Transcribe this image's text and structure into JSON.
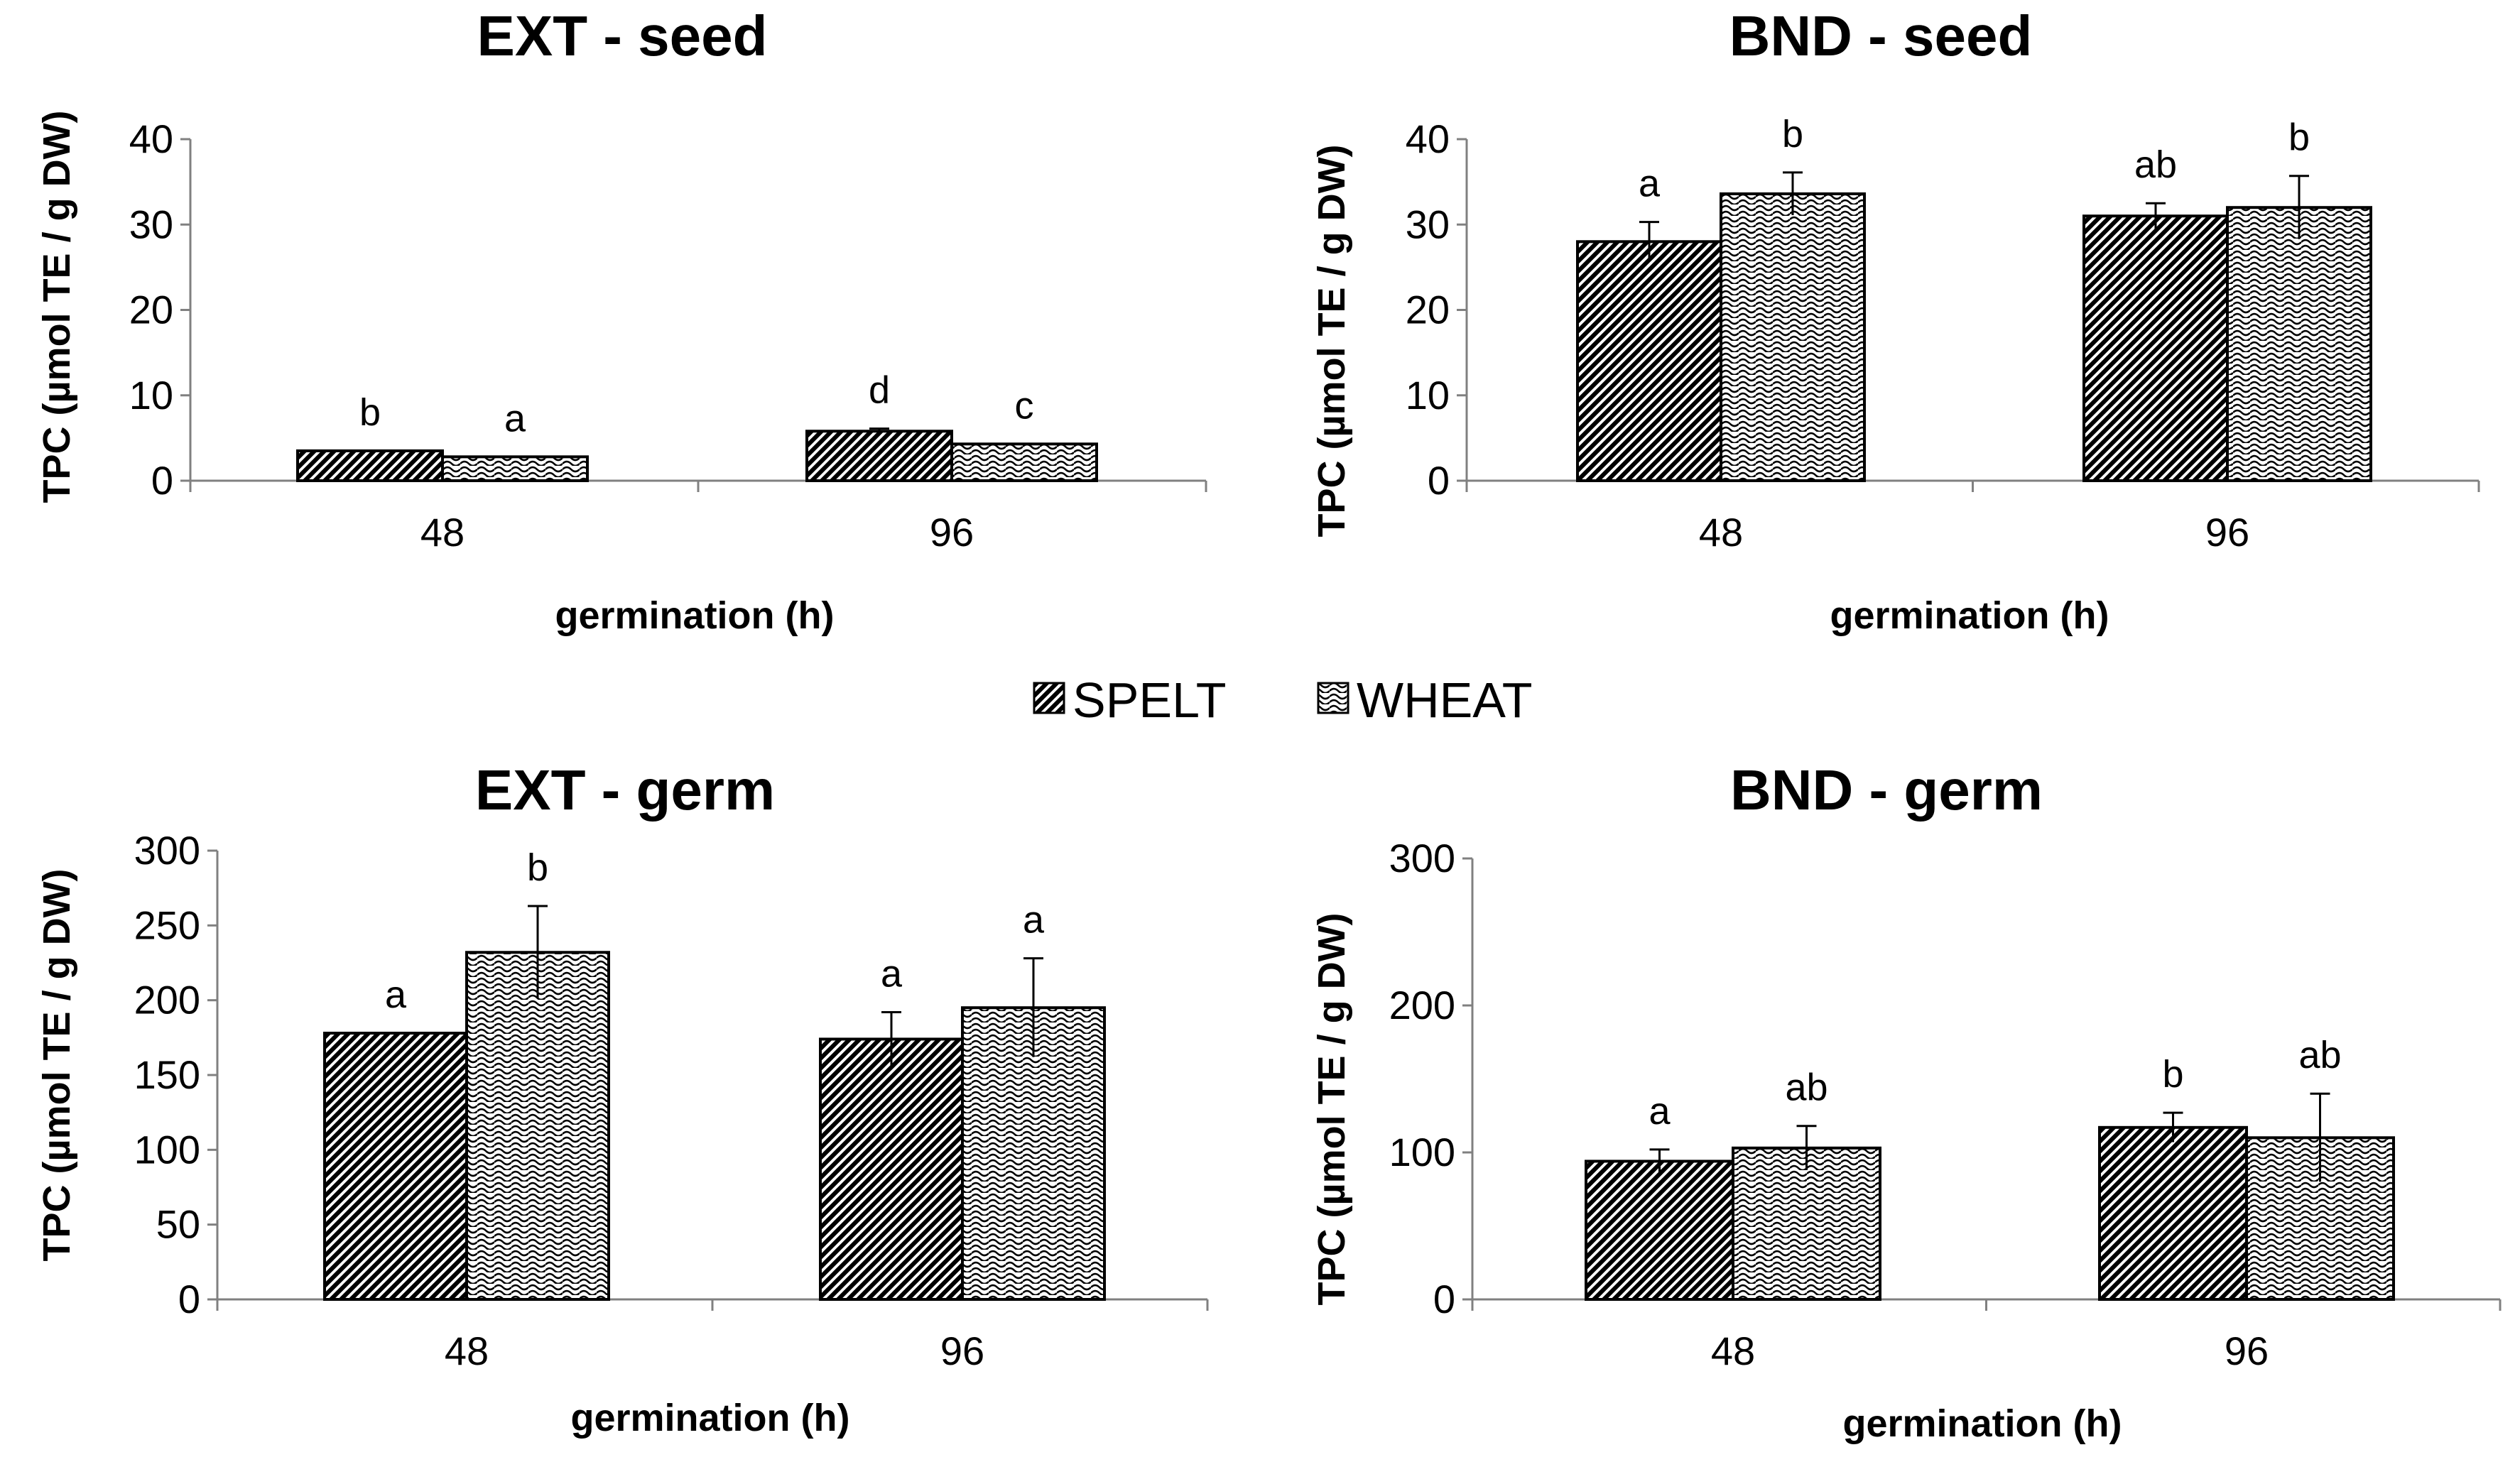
{
  "legend": [
    {
      "name": "SPELT",
      "pattern": "diagonal-hatch"
    },
    {
      "name": "WHEAT",
      "pattern": "wave"
    }
  ],
  "colors": {
    "bar_stroke": "#000000",
    "axis": "#808080",
    "text": "#000000",
    "background": "#ffffff"
  },
  "chart_data": [
    {
      "type": "bar",
      "title": "EXT - seed",
      "xlabel": "germination (h)",
      "ylabel": "TPC (µmol TE / g DW)",
      "categories": [
        "48",
        "96"
      ],
      "ylim": [
        0,
        40
      ],
      "yticks": [
        0,
        10,
        20,
        30,
        40
      ],
      "series": [
        {
          "name": "SPELT",
          "values": [
            3.5,
            5.8
          ],
          "errors": [
            0,
            0.3
          ],
          "letters": [
            "b",
            "d"
          ]
        },
        {
          "name": "WHEAT",
          "values": [
            2.8,
            4.3
          ],
          "errors": [
            0,
            0
          ],
          "letters": [
            "a",
            "c"
          ]
        }
      ]
    },
    {
      "type": "bar",
      "title": "BND - seed",
      "xlabel": "germination (h)",
      "ylabel": "TPC (µmol TE / g DW)",
      "categories": [
        "48",
        "96"
      ],
      "ylim": [
        0,
        40
      ],
      "yticks": [
        0,
        10,
        20,
        30,
        40
      ],
      "series": [
        {
          "name": "SPELT",
          "values": [
            28,
            31
          ],
          "errors": [
            2.3,
            1.5
          ],
          "letters": [
            "a",
            "ab"
          ]
        },
        {
          "name": "WHEAT",
          "values": [
            33.6,
            32
          ],
          "errors": [
            2.5,
            3.7
          ],
          "letters": [
            "b",
            "b"
          ]
        }
      ]
    },
    {
      "type": "bar",
      "title": "EXT - germ",
      "xlabel": "germination (h)",
      "ylabel": "TPC (µmol TE / g DW)",
      "categories": [
        "48",
        "96"
      ],
      "ylim": [
        0,
        300
      ],
      "yticks": [
        0,
        50,
        100,
        150,
        200,
        250,
        300
      ],
      "series": [
        {
          "name": "SPELT",
          "values": [
            178,
            174
          ],
          "errors": [
            0,
            18
          ],
          "letters": [
            "a",
            "a"
          ]
        },
        {
          "name": "WHEAT",
          "values": [
            232,
            195
          ],
          "errors": [
            31,
            33
          ],
          "letters": [
            "b",
            "a"
          ]
        }
      ]
    },
    {
      "type": "bar",
      "title": "BND - germ",
      "xlabel": "germination (h)",
      "ylabel": "TPC (µmol TE / g DW)",
      "categories": [
        "48",
        "96"
      ],
      "ylim": [
        0,
        300
      ],
      "yticks": [
        0,
        100,
        200,
        300
      ],
      "series": [
        {
          "name": "SPELT",
          "values": [
            94,
            117
          ],
          "errors": [
            8,
            10
          ],
          "letters": [
            "a",
            "b"
          ]
        },
        {
          "name": "WHEAT",
          "values": [
            103,
            110
          ],
          "errors": [
            15,
            30
          ],
          "letters": [
            "ab",
            "ab"
          ]
        }
      ]
    }
  ]
}
